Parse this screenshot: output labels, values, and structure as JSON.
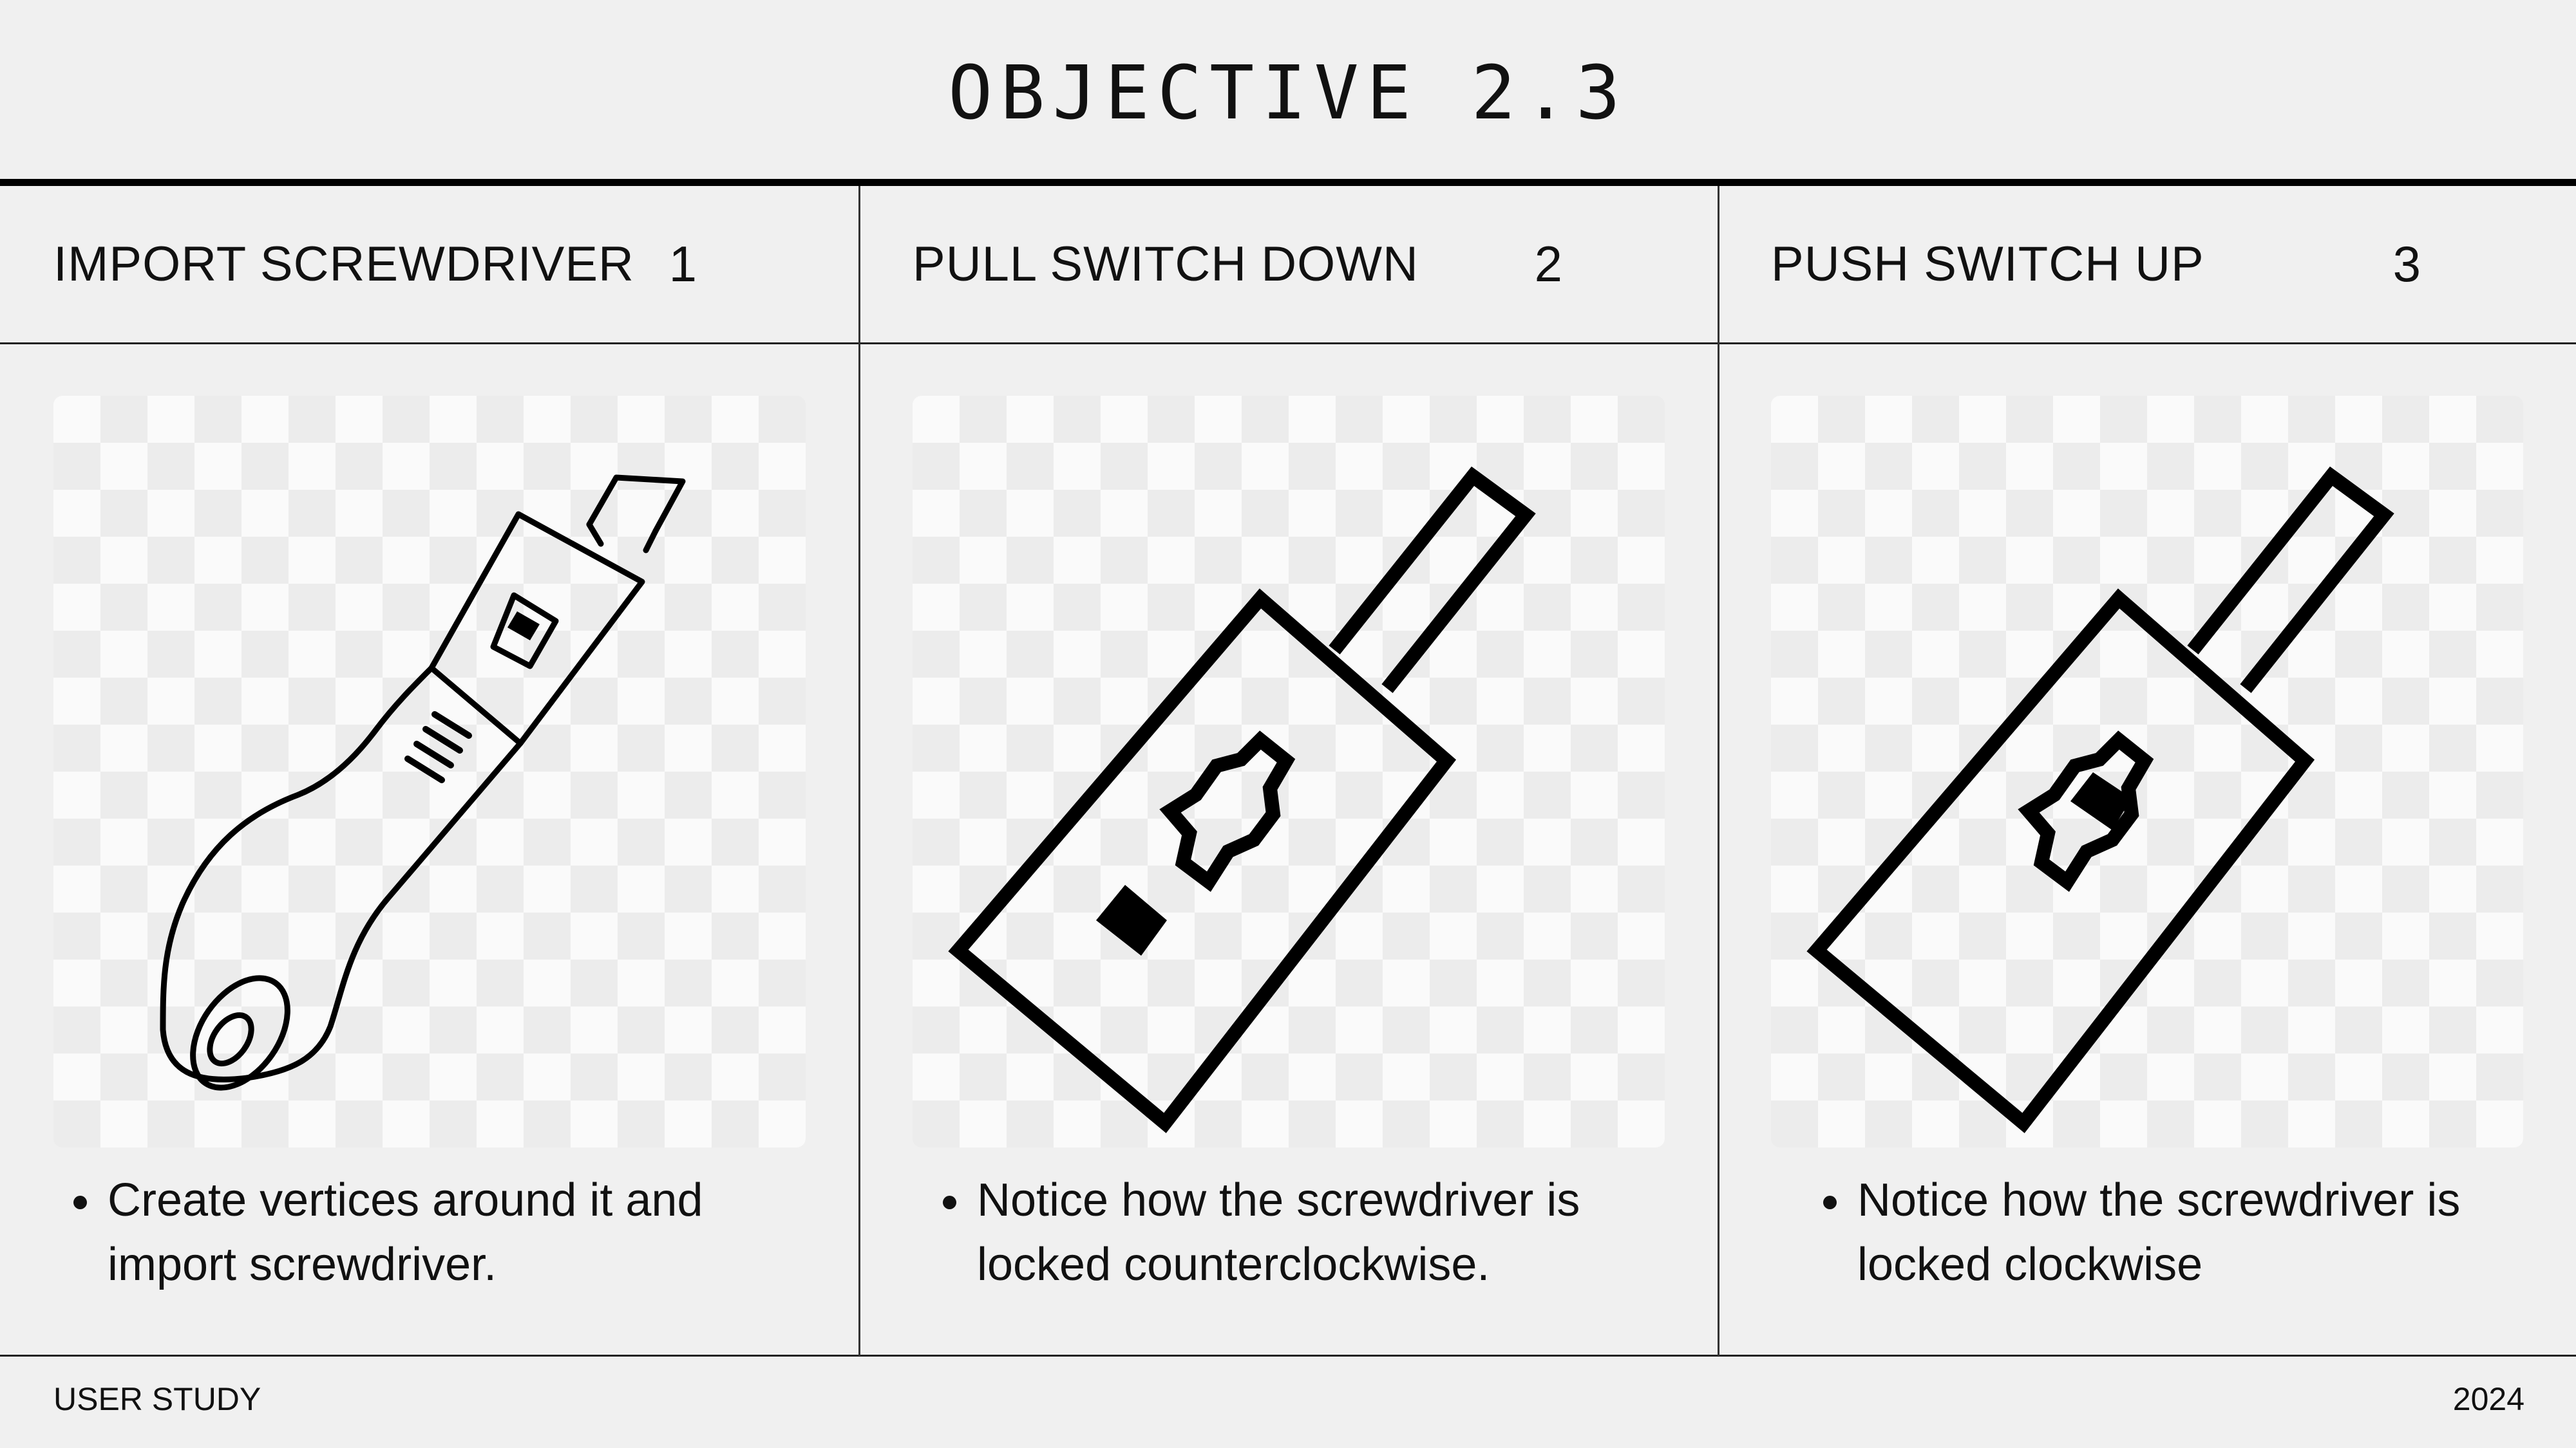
{
  "title": "OBJECTIVE 2.3",
  "steps": [
    {
      "label": "IMPORT SCREWDRIVER",
      "number": "1",
      "note": "Create vertices around it and import screwdriver.",
      "illustration": "screwdriver-icon"
    },
    {
      "label": "PULL SWITCH DOWN",
      "number": "2",
      "note": "Notice how the screwdriver is locked counterclockwise.",
      "illustration": "ratchet-switch-down-icon"
    },
    {
      "label": "PUSH SWITCH UP",
      "number": "3",
      "note": "Notice how the screwdriver is locked clockwise",
      "illustration": "ratchet-switch-up-icon"
    }
  ],
  "footer": {
    "left": "USER STUDY",
    "right": "2024"
  },
  "colors": {
    "background": "#f0f0f0",
    "ink": "#000000",
    "checker_light": "#fafafa",
    "checker_dark": "#ececec"
  }
}
